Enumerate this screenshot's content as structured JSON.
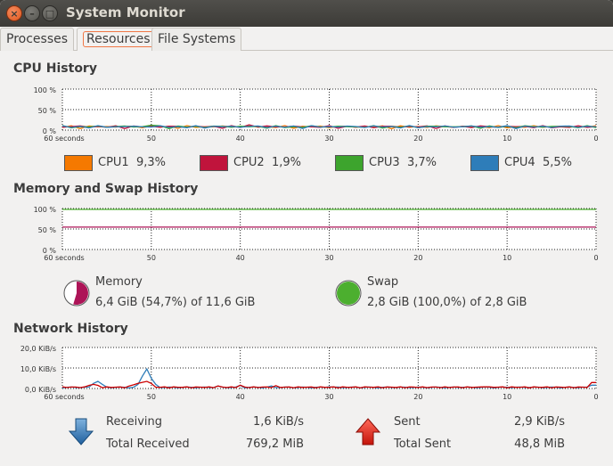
{
  "window": {
    "title": "System Monitor",
    "close": "×",
    "minimize": "–",
    "maximize": "□"
  },
  "tabs": [
    {
      "label": "Processes"
    },
    {
      "label": "Resources",
      "active": true
    },
    {
      "label": "File Systems"
    }
  ],
  "cpu": {
    "heading": "CPU History",
    "y_ticks": [
      "100 %",
      "50 %",
      "0 %"
    ],
    "x_ticks": [
      "60 seconds",
      "50",
      "40",
      "30",
      "20",
      "10",
      "0"
    ],
    "legend": [
      {
        "label": "CPU1",
        "value": "9,3%",
        "color": "#f57900"
      },
      {
        "label": "CPU2",
        "value": "1,9%",
        "color": "#c0143c"
      },
      {
        "label": "CPU3",
        "value": "3,7%",
        "color": "#3da42d"
      },
      {
        "label": "CPU4",
        "value": "5,5%",
        "color": "#2e7db9"
      }
    ]
  },
  "memory": {
    "heading": "Memory and Swap History",
    "y_ticks": [
      "100 %",
      "50 %",
      "0 %"
    ],
    "x_ticks": [
      "60 seconds",
      "50",
      "40",
      "30",
      "20",
      "10",
      "0"
    ],
    "memory_label": "Memory",
    "memory_value": "6,4 GiB (54,7%) of 11,6 GiB",
    "memory_fraction": 0.547,
    "memory_color": "#ad1457",
    "swap_label": "Swap",
    "swap_value": "2,8 GiB (100,0%) of 2,8 GiB",
    "swap_fraction": 1.0,
    "swap_color": "#4caf2f"
  },
  "network": {
    "heading": "Network History",
    "y_ticks": [
      "20,0 KiB/s",
      "10,0 KiB/s",
      "0,0 KiB/s"
    ],
    "x_ticks": [
      "60 seconds",
      "50",
      "40",
      "30",
      "20",
      "10",
      "0"
    ],
    "receiving_label": "Receiving",
    "receiving_value": "1,6 KiB/s",
    "total_received_label": "Total Received",
    "total_received_value": "769,2 MiB",
    "sent_label": "Sent",
    "sent_value": "2,9 KiB/s",
    "total_sent_label": "Total Sent",
    "total_sent_value": "48,8 MiB",
    "receiving_color": "#2e7db9",
    "sent_color": "#cc0000"
  }
}
